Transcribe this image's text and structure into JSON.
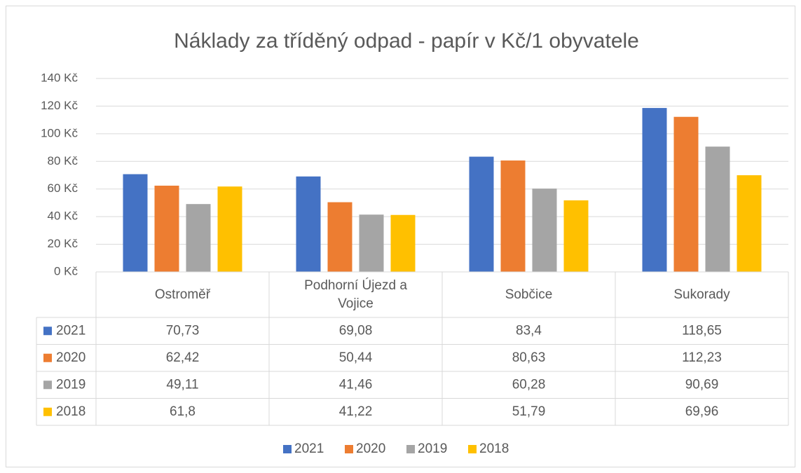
{
  "chart_data": {
    "type": "bar",
    "title": "Náklady za tříděný odpad - papír v Kč/1 obyvatele",
    "categories": [
      "Ostroměř",
      "Podhorní Újezd a Vojice",
      "Sobčice",
      "Sukorady"
    ],
    "series": [
      {
        "name": "2021",
        "color": "#4472c4",
        "values": [
          70.73,
          69.08,
          83.4,
          118.65
        ],
        "value_labels": [
          "70,73",
          "69,08",
          "83,4",
          "118,65"
        ]
      },
      {
        "name": "2020",
        "color": "#ed7d31",
        "values": [
          62.42,
          50.44,
          80.63,
          112.23
        ],
        "value_labels": [
          "62,42",
          "50,44",
          "80,63",
          "112,23"
        ]
      },
      {
        "name": "2019",
        "color": "#a5a5a5",
        "values": [
          49.11,
          41.46,
          60.28,
          90.69
        ],
        "value_labels": [
          "49,11",
          "41,46",
          "60,28",
          "90,69"
        ]
      },
      {
        "name": "2018",
        "color": "#ffc000",
        "values": [
          61.8,
          41.22,
          51.79,
          69.96
        ],
        "value_labels": [
          "61,8",
          "41,22",
          "51,79",
          "69,96"
        ]
      }
    ],
    "ylim": [
      0,
      140
    ],
    "yticks": [
      {
        "value": 0,
        "label": "0 Kč"
      },
      {
        "value": 20,
        "label": "20 Kč"
      },
      {
        "value": 40,
        "label": "40 Kč"
      },
      {
        "value": 60,
        "label": "60 Kč"
      },
      {
        "value": 80,
        "label": "80 Kč"
      },
      {
        "value": 100,
        "label": "100 Kč"
      },
      {
        "value": 120,
        "label": "120 Kč"
      },
      {
        "value": 140,
        "label": "140 Kč"
      }
    ],
    "grid": true,
    "legend": "bottom",
    "data_table": true
  }
}
